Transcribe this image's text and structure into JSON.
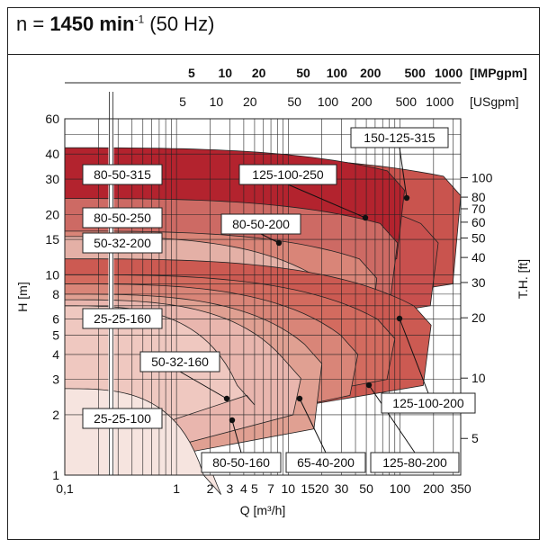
{
  "header": {
    "prefix": "n = ",
    "speed": "1450 min",
    "speed_sup": "-1",
    "freq": " (50 Hz)"
  },
  "colors": {
    "curve_fill_dark": "#b3232e",
    "curve_fill_mid": "#c94a4d",
    "curve_fill_light": "#e9b6ae",
    "curve_fill_lightest": "#f6e4df",
    "grid": "#222222"
  },
  "chart_data": {
    "type": "area",
    "title": "n = 1450 min-1 (50 Hz)",
    "xlabel": "Q [m³/h]",
    "ylabel_left": "H [m]",
    "ylabel_right": "T.H. [ft]",
    "x_scale": "log",
    "y_scale": "log",
    "xlim": [
      0.1,
      350
    ],
    "ylim": [
      1,
      60
    ],
    "grid": true,
    "x_ticks": [
      "0,1",
      "1",
      "2",
      "3",
      "4",
      "5",
      "7",
      "10",
      "15",
      "20",
      "30",
      "50",
      "100",
      "200",
      "350"
    ],
    "y_ticks": [
      "1",
      "2",
      "3",
      "4",
      "5",
      "6",
      "8",
      "10",
      "15",
      "20",
      "30",
      "40",
      "60"
    ],
    "right_ticks": [
      "5",
      "10",
      "20",
      "30",
      "40",
      "50",
      "60",
      "70",
      "80",
      "100"
    ],
    "top_axis_imp_label": "[IMPgpm]",
    "top_axis_imp_ticks": [
      "5",
      "10",
      "20",
      "50",
      "100",
      "200",
      "500",
      "1000"
    ],
    "top_axis_us_label": "[USgpm]",
    "top_axis_us_ticks": [
      "5",
      "10",
      "20",
      "50",
      "100",
      "200",
      "500",
      "1000"
    ],
    "series": [
      {
        "name": "25-25-100",
        "fill": "#f6e4df",
        "q_max": 2.5,
        "h_top": 2.5
      },
      {
        "name": "25-25-160",
        "fill": "#efc8c0",
        "q_max": 4.5,
        "h_top": 7.0
      },
      {
        "name": "50-32-160",
        "fill": "#e9b6ae",
        "q_max": 12,
        "h_top": 3.2
      },
      {
        "name": "80-50-160",
        "fill": "#e0a092",
        "q_max": 18,
        "h_top": 2.8
      },
      {
        "name": "65-40-200",
        "fill": "#d98578",
        "q_max": 40,
        "h_top": 3.6
      },
      {
        "name": "125-80-200",
        "fill": "#d36b5f",
        "q_max": 80,
        "h_top": 3.3
      },
      {
        "name": "125-100-200",
        "fill": "#cc5a52",
        "q_max": 180,
        "h_top": 6.0
      },
      {
        "name": "50-32-200",
        "fill": "#e4b0a6",
        "q_max": 30,
        "h_top": 15.5
      },
      {
        "name": "80-50-200",
        "fill": "#d98578",
        "q_max": 60,
        "h_top": 16
      },
      {
        "name": "80-50-250",
        "fill": "#cd6a64",
        "q_max": 90,
        "h_top": 23
      },
      {
        "name": "125-100-250",
        "fill": "#c8504e",
        "q_max": 200,
        "h_top": 22
      },
      {
        "name": "80-50-315",
        "fill": "#b3232e",
        "q_max": 110,
        "h_top": 43
      },
      {
        "name": "150-125-315",
        "fill": "#c9544e",
        "q_max": 350,
        "h_top": 38
      }
    ]
  }
}
